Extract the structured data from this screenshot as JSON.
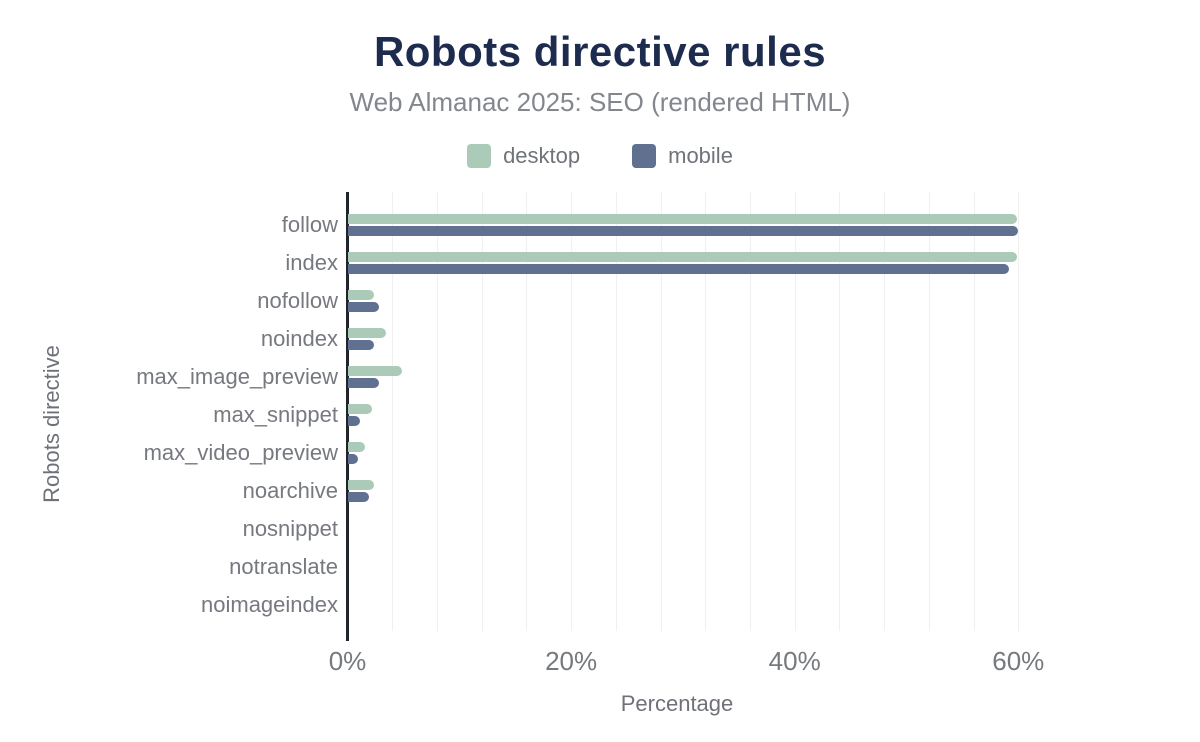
{
  "header": {
    "title": "Robots directive rules",
    "subtitle": "Web Almanac 2025: SEO (rendered HTML)"
  },
  "colors": {
    "desktop": "#abcab7",
    "mobile": "#5f7090",
    "title": "#1d2b4f",
    "subtitle": "#83878d",
    "axis_line": "#21242b",
    "gridline": "#f0f0f1",
    "tick_label": "#76797f",
    "axis_title": "#6e7278"
  },
  "chart_data": {
    "type": "bar",
    "orientation": "horizontal",
    "title": "Robots directive rules",
    "subtitle": "Web Almanac 2025: SEO (rendered HTML)",
    "categories": [
      "follow",
      "index",
      "nofollow",
      "noindex",
      "max_image_preview",
      "max_snippet",
      "max_video_preview",
      "noarchive",
      "nosnippet",
      "notranslate",
      "noimageindex"
    ],
    "series": [
      {
        "name": "desktop",
        "color": "#abcab7",
        "values": [
          59.9,
          59.9,
          2.4,
          3.4,
          4.9,
          2.2,
          1.6,
          2.4,
          0,
          0,
          0
        ]
      },
      {
        "name": "mobile",
        "color": "#5f7090",
        "values": [
          60.0,
          59.2,
          2.8,
          2.4,
          2.8,
          1.1,
          0.9,
          1.9,
          0,
          0,
          0
        ]
      }
    ],
    "xlabel": "Percentage",
    "ylabel": "Robots directive",
    "x_ticks": [
      {
        "value": 0,
        "label": "0%"
      },
      {
        "value": 20,
        "label": "20%"
      },
      {
        "value": 40,
        "label": "40%"
      },
      {
        "value": 60,
        "label": "60%"
      }
    ],
    "xlim": [
      0,
      60
    ],
    "grid_step": 4,
    "grid": true,
    "legend_position": "top"
  }
}
